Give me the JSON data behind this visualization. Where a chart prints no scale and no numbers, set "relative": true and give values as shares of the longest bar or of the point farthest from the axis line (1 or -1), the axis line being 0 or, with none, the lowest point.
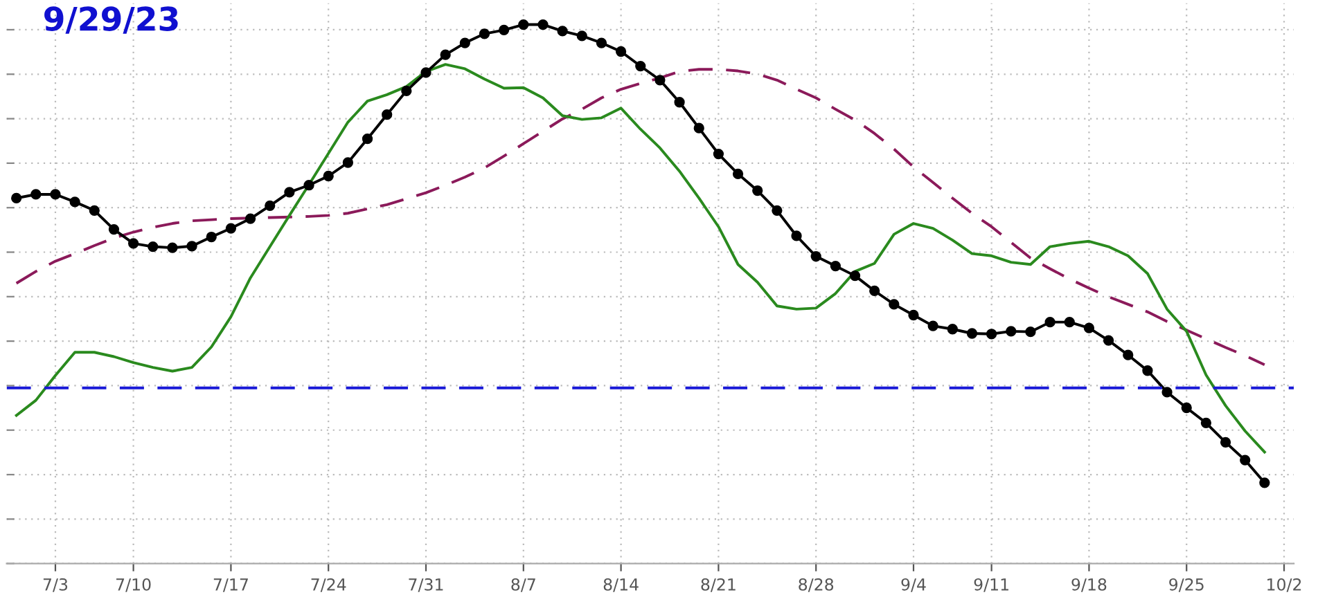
{
  "chart_data": {
    "type": "line",
    "title": "9/29/23",
    "relative": true,
    "grid": true,
    "legend": false,
    "tick_labels": "x",
    "categories": [
      null,
      null,
      "7/3",
      null,
      null,
      null,
      "7/10",
      null,
      null,
      null,
      null,
      "7/17",
      null,
      null,
      null,
      null,
      "7/24",
      null,
      null,
      null,
      null,
      "7/31",
      null,
      null,
      null,
      null,
      "8/7",
      null,
      null,
      null,
      null,
      "8/14",
      null,
      null,
      null,
      null,
      "8/21",
      null,
      null,
      null,
      null,
      "8/28",
      null,
      null,
      null,
      null,
      "9/4",
      null,
      null,
      null,
      "9/11",
      null,
      null,
      null,
      null,
      "9/18",
      null,
      null,
      null,
      null,
      "9/25",
      null,
      null,
      null,
      null,
      "10/2"
    ],
    "ref_lines": [
      {
        "axis": "y",
        "value": 0.326,
        "color": "#1a1ad8",
        "line_style": "dashed"
      }
    ],
    "series": [
      {
        "color": "#8b1a5a",
        "line_style": "dashed",
        "marker": "none",
        "values": [
          0.52,
          0.542,
          0.561,
          0.575,
          0.59,
          0.604,
          0.615,
          0.624,
          0.631,
          0.636,
          0.638,
          0.64,
          0.641,
          0.642,
          0.643,
          0.644,
          0.646,
          0.65,
          0.658,
          0.666,
          0.677,
          0.688,
          0.702,
          0.717,
          0.734,
          0.756,
          0.779,
          0.802,
          0.825,
          0.843,
          0.864,
          0.88,
          0.891,
          0.901,
          0.913,
          0.917,
          0.917,
          0.914,
          0.908,
          0.897,
          0.88,
          0.864,
          0.843,
          0.823,
          0.798,
          0.769,
          0.736,
          0.707,
          0.678,
          0.65,
          0.625,
          0.596,
          0.567,
          0.547,
          0.528,
          0.511,
          0.495,
          0.481,
          0.467,
          0.449,
          0.433,
          0.417,
          0.401,
          0.386,
          0.369,
          null
        ]
      },
      {
        "color": "#2a8a1e",
        "line_style": "solid",
        "marker": "none",
        "values": [
          0.275,
          0.303,
          0.349,
          0.392,
          0.392,
          0.384,
          0.373,
          0.364,
          0.357,
          0.364,
          0.402,
          0.458,
          0.53,
          0.588,
          0.646,
          0.703,
          0.761,
          0.819,
          0.858,
          0.87,
          0.885,
          0.913,
          0.926,
          0.918,
          0.899,
          0.882,
          0.883,
          0.864,
          0.831,
          0.824,
          0.827,
          0.845,
          0.806,
          0.771,
          0.728,
          0.678,
          0.625,
          0.555,
          0.522,
          0.478,
          0.472,
          0.474,
          0.501,
          0.542,
          0.557,
          0.611,
          0.631,
          0.622,
          0.6,
          0.575,
          0.571,
          0.559,
          0.555,
          0.588,
          0.594,
          0.598,
          0.588,
          0.571,
          0.538,
          0.472,
          0.431,
          0.35,
          0.293,
          0.246,
          0.207,
          null
        ]
      },
      {
        "color": "#000000",
        "line_style": "solid",
        "marker": "circle",
        "values": [
          0.678,
          0.685,
          0.685,
          0.671,
          0.655,
          0.62,
          0.594,
          0.588,
          0.586,
          0.589,
          0.606,
          0.622,
          0.64,
          0.664,
          0.689,
          0.702,
          0.719,
          0.744,
          0.788,
          0.833,
          0.877,
          0.911,
          0.944,
          0.966,
          0.983,
          0.99,
          1.0,
          1.0,
          0.988,
          0.979,
          0.966,
          0.95,
          0.923,
          0.897,
          0.856,
          0.808,
          0.76,
          0.723,
          0.692,
          0.655,
          0.608,
          0.57,
          0.552,
          0.534,
          0.506,
          0.481,
          0.461,
          0.441,
          0.435,
          0.427,
          0.426,
          0.431,
          0.43,
          0.448,
          0.448,
          0.437,
          0.414,
          0.387,
          0.358,
          0.318,
          0.289,
          0.261,
          0.225,
          0.192,
          0.15,
          null
        ]
      }
    ]
  }
}
